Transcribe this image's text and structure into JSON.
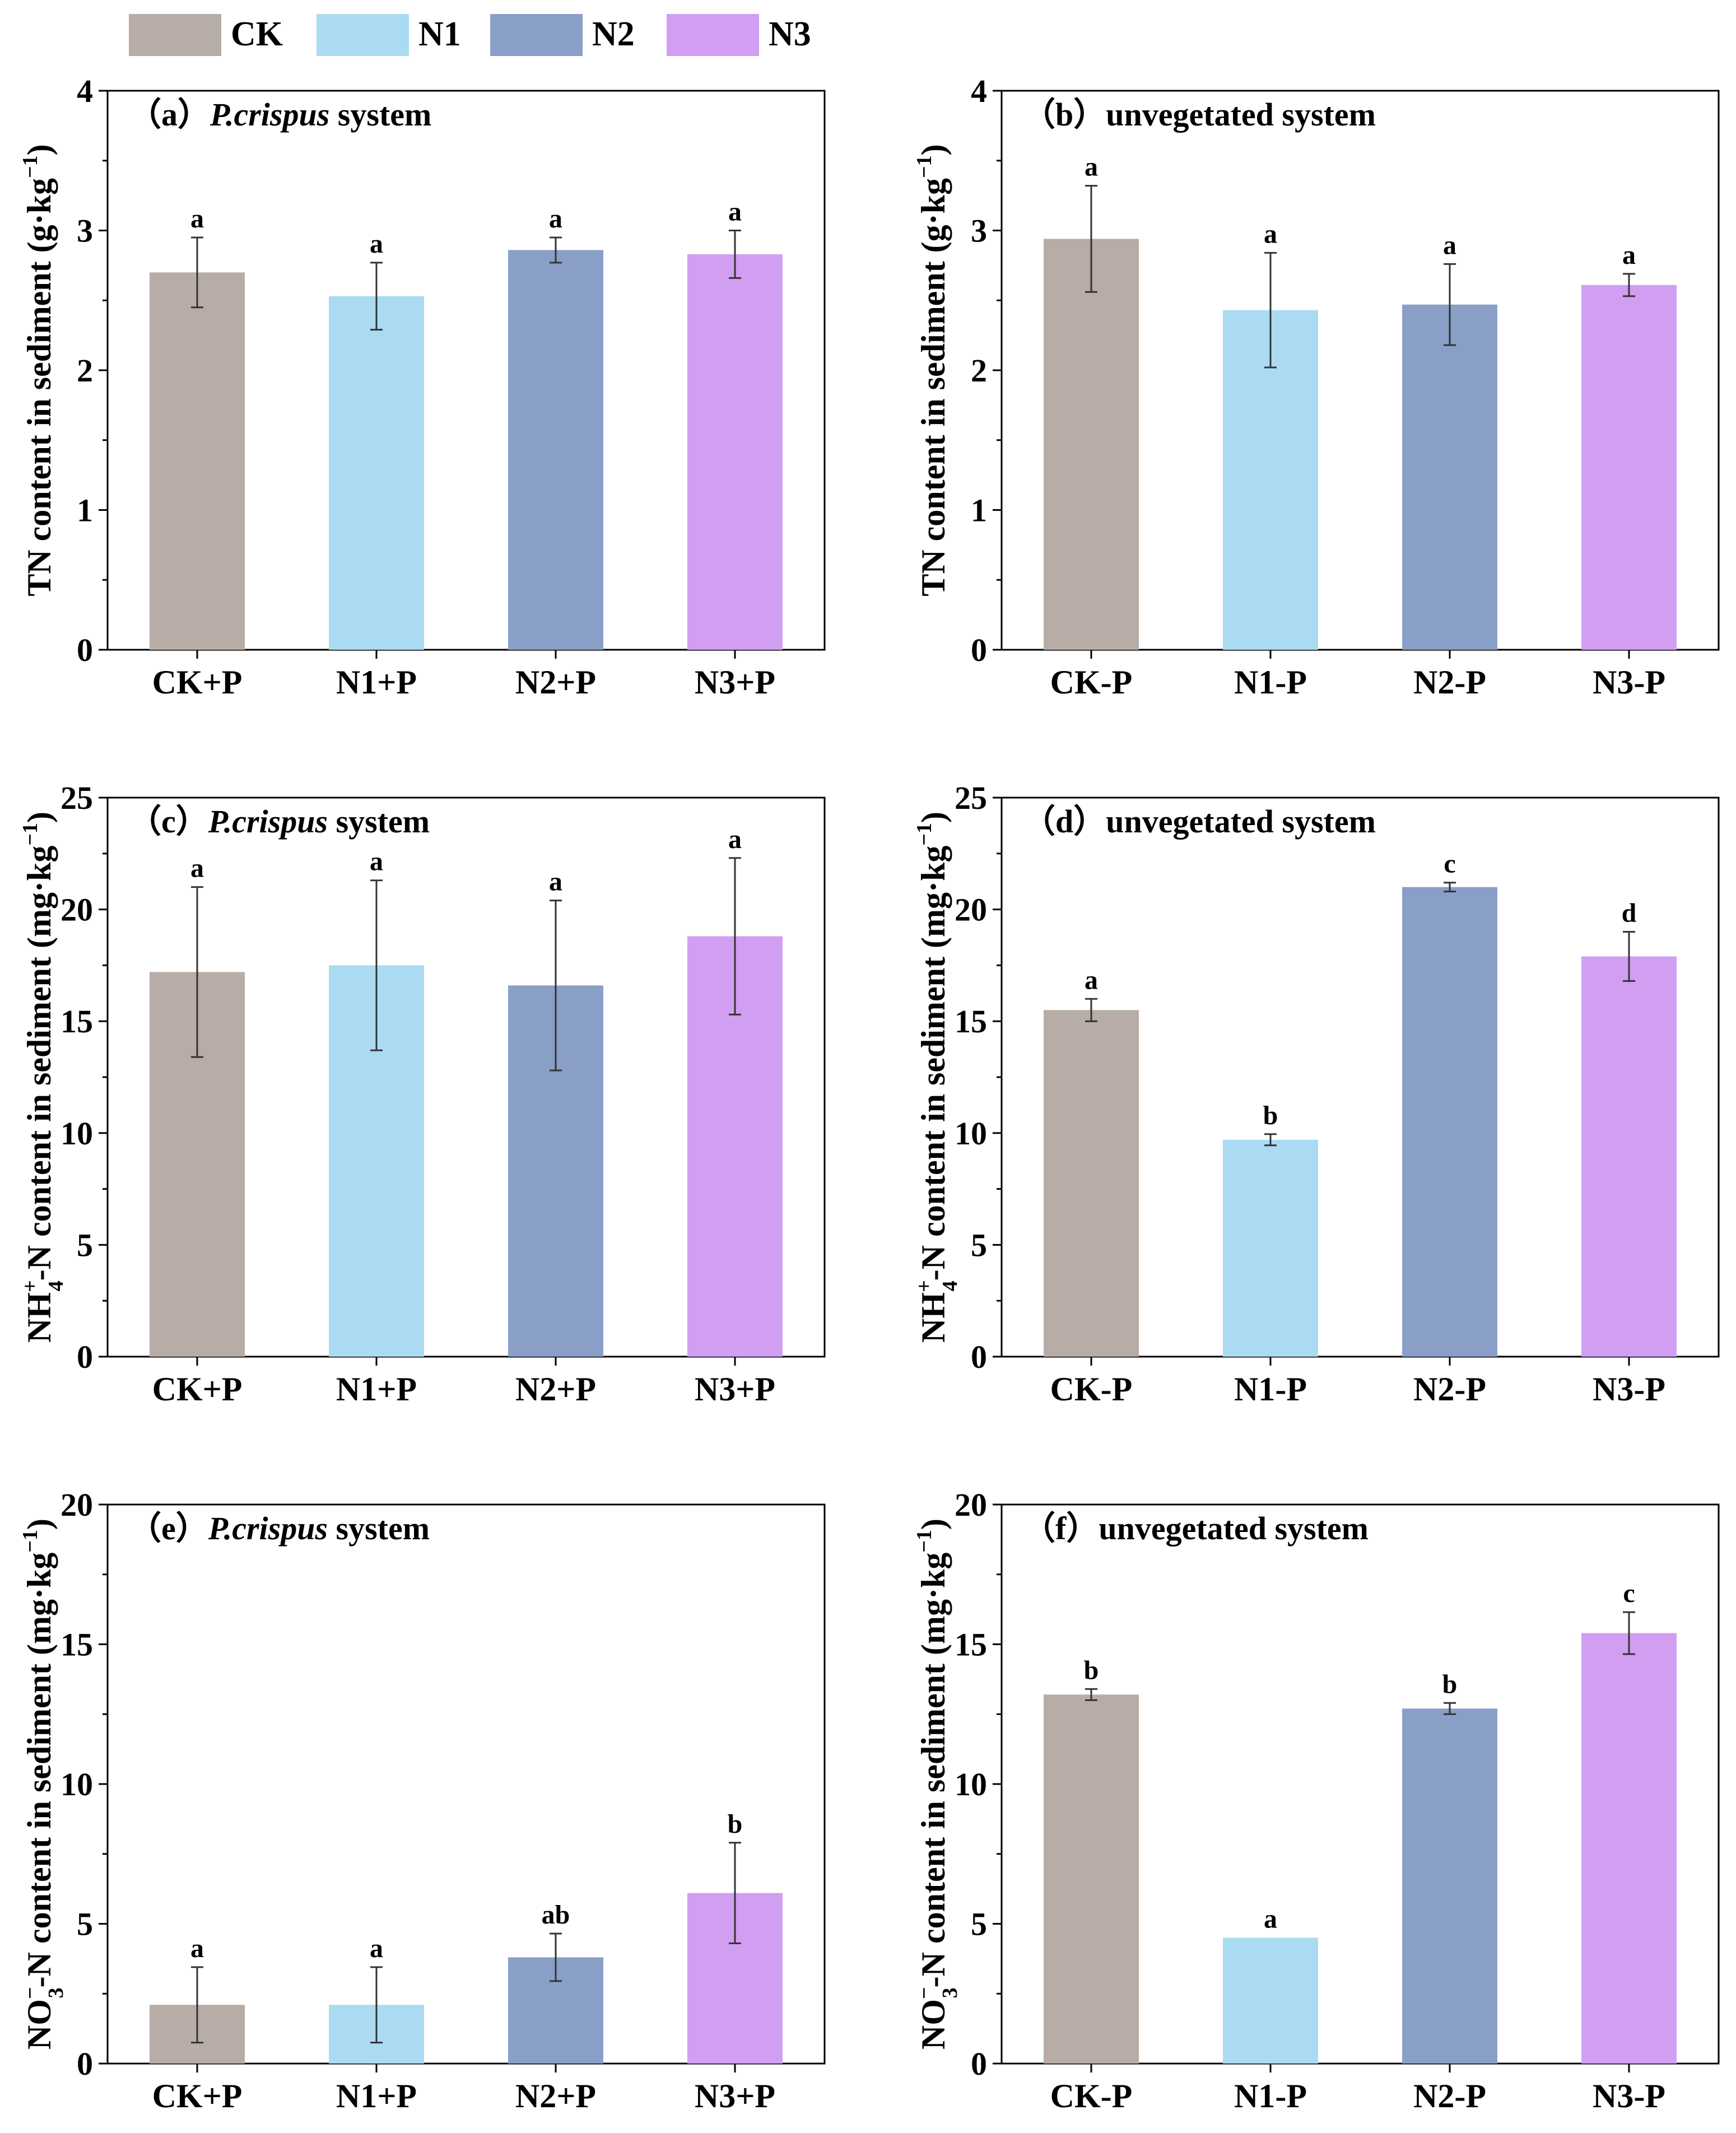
{
  "legend": {
    "items": [
      {
        "key": "CK",
        "label": "CK",
        "color": "#b8aca6"
      },
      {
        "key": "N1",
        "label": "N1",
        "color": "#aadbf2"
      },
      {
        "key": "N2",
        "label": "N2",
        "color": "#8a9fc7"
      },
      {
        "key": "N3",
        "label": "N3",
        "color": "#d19ef2"
      }
    ]
  },
  "chart_data": [
    {
      "id": "a",
      "type": "bar",
      "panel_prefix": "（a）",
      "panel_italic": "P.crispus",
      "panel_suffix": " system",
      "ylabel": {
        "main": "TN content in sediment (g·kg",
        "sup": "−1",
        "close": ")"
      },
      "ylim": [
        0,
        4
      ],
      "yticks": [
        0,
        1,
        2,
        3,
        4
      ],
      "categories": [
        "CK+P",
        "N1+P",
        "N2+P",
        "N3+P"
      ],
      "series_keys": [
        "CK",
        "N1",
        "N2",
        "N3"
      ],
      "values": [
        2.7,
        2.53,
        2.86,
        2.83
      ],
      "errors": [
        0.25,
        0.24,
        0.09,
        0.17
      ],
      "letters": [
        "a",
        "a",
        "a",
        "a"
      ]
    },
    {
      "id": "b",
      "type": "bar",
      "panel_prefix": "（b）",
      "panel_italic": "",
      "panel_suffix": "unvegetated system",
      "ylabel": {
        "main": "TN content in sediment (g·kg",
        "sup": "−1",
        "close": ")"
      },
      "ylim": [
        0,
        4
      ],
      "yticks": [
        0,
        1,
        2,
        3,
        4
      ],
      "categories": [
        "CK-P",
        "N1-P",
        "N2-P",
        "N3-P"
      ],
      "series_keys": [
        "CK",
        "N1",
        "N2",
        "N3"
      ],
      "values": [
        2.94,
        2.43,
        2.47,
        2.61
      ],
      "errors": [
        0.38,
        0.41,
        0.29,
        0.08
      ],
      "letters": [
        "a",
        "a",
        "a",
        "a"
      ]
    },
    {
      "id": "c",
      "type": "bar",
      "panel_prefix": "（c）",
      "panel_italic": "P.crispus",
      "panel_suffix": " system",
      "ylabel": {
        "main": "NH",
        "sup": "+",
        "sub": "4",
        "after": "-N content in sediment (mg·kg",
        "sup2": "−1",
        "close": ")"
      },
      "ylim": [
        0,
        25
      ],
      "yticks": [
        0,
        5,
        10,
        15,
        20,
        25
      ],
      "categories": [
        "CK+P",
        "N1+P",
        "N2+P",
        "N3+P"
      ],
      "series_keys": [
        "CK",
        "N1",
        "N2",
        "N3"
      ],
      "values": [
        17.2,
        17.5,
        16.6,
        18.8
      ],
      "errors": [
        3.8,
        3.8,
        3.8,
        3.5
      ],
      "letters": [
        "a",
        "a",
        "a",
        "a"
      ]
    },
    {
      "id": "d",
      "type": "bar",
      "panel_prefix": "（d）",
      "panel_italic": "",
      "panel_suffix": "unvegetated system",
      "ylabel": {
        "main": "NH",
        "sup": "+",
        "sub": "4",
        "after": "-N content in sediment (mg·kg",
        "sup2": "−1",
        "close": ")"
      },
      "ylim": [
        0,
        25
      ],
      "yticks": [
        0,
        5,
        10,
        15,
        20,
        25
      ],
      "categories": [
        "CK-P",
        "N1-P",
        "N2-P",
        "N3-P"
      ],
      "series_keys": [
        "CK",
        "N1",
        "N2",
        "N3"
      ],
      "values": [
        15.5,
        9.7,
        21.0,
        17.9
      ],
      "errors": [
        0.5,
        0.25,
        0.2,
        1.1
      ],
      "letters": [
        "a",
        "b",
        "c",
        "d"
      ]
    },
    {
      "id": "e",
      "type": "bar",
      "panel_prefix": "（e）",
      "panel_italic": "P.crispus",
      "panel_suffix": " system",
      "ylabel": {
        "main": "NO",
        "sup": "−",
        "sub": "3",
        "after": "-N content in sediment (mg·kg",
        "sup2": "−1",
        "close": ")"
      },
      "ylim": [
        0,
        20
      ],
      "yticks": [
        0,
        5,
        10,
        15,
        20
      ],
      "categories": [
        "CK+P",
        "N1+P",
        "N2+P",
        "N3+P"
      ],
      "series_keys": [
        "CK",
        "N1",
        "N2",
        "N3"
      ],
      "values": [
        2.1,
        2.1,
        3.8,
        6.1
      ],
      "errors": [
        1.35,
        1.35,
        0.85,
        1.8
      ],
      "letters": [
        "a",
        "a",
        "ab",
        "b"
      ]
    },
    {
      "id": "f",
      "type": "bar",
      "panel_prefix": "（f）",
      "panel_italic": "",
      "panel_suffix": "unvegetated system",
      "ylabel": {
        "main": "NO",
        "sup": "−",
        "sub": "3",
        "after": "-N content in sediment (mg·kg",
        "sup2": "−1",
        "close": ")"
      },
      "ylim": [
        0,
        20
      ],
      "yticks": [
        0,
        5,
        10,
        15,
        20
      ],
      "categories": [
        "CK-P",
        "N1-P",
        "N2-P",
        "N3-P"
      ],
      "series_keys": [
        "CK",
        "N1",
        "N2",
        "N3"
      ],
      "values": [
        13.2,
        4.5,
        12.7,
        15.4
      ],
      "errors": [
        0.2,
        0.0,
        0.2,
        0.75
      ],
      "letters": [
        "b",
        "a",
        "b",
        "c"
      ]
    }
  ]
}
